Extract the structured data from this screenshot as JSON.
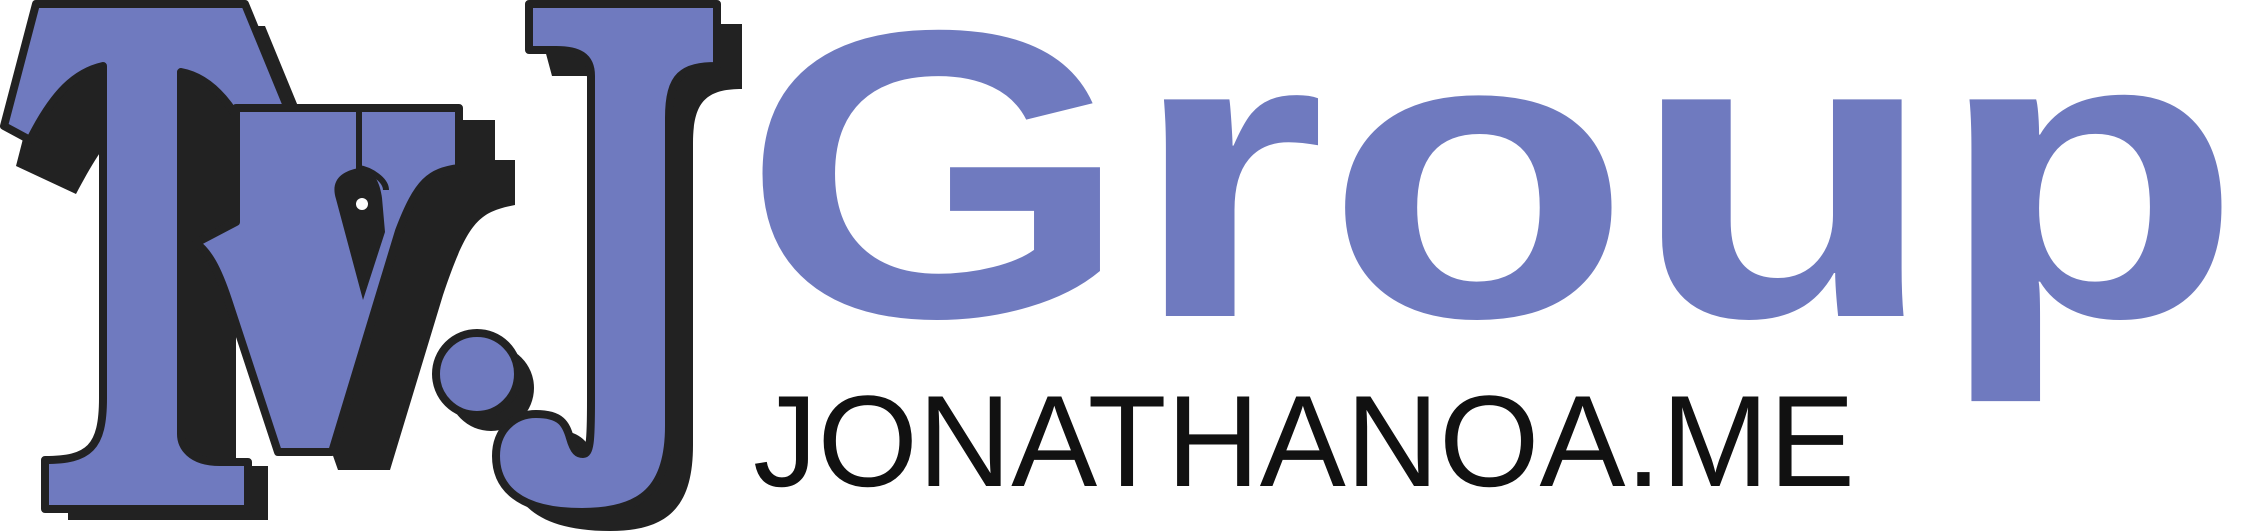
{
  "logo": {
    "letter_t": "T",
    "letter_v": "V",
    "letter_j": "J",
    "group": "Group",
    "domain": "JONATHANOA.ME"
  },
  "colors": {
    "fill": "#6f7abf",
    "outline": "#222222",
    "shadow": "#222222",
    "domain_text": "#111111",
    "background": "#ffffff"
  }
}
